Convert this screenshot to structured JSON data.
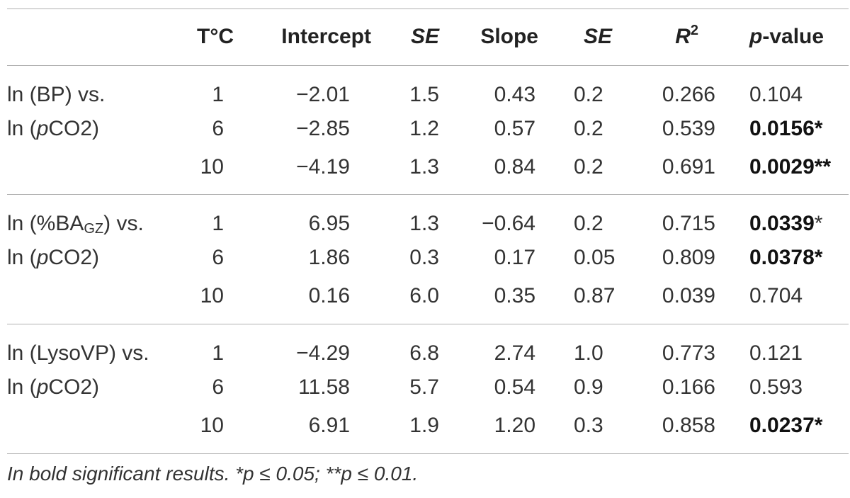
{
  "table": {
    "headers": {
      "temp": "T°C",
      "intercept": "Intercept",
      "se1": "SE",
      "slope": "Slope",
      "se2": "SE",
      "r2_base": "R",
      "r2_sup": "2",
      "pval_italic": "p",
      "pval_rest": "-value"
    },
    "groups": [
      {
        "label_line1": "ln (BP) vs.",
        "label_line2_pre": "ln (",
        "label_line2_italic": "p",
        "label_line2_post": "CO2)",
        "rows": [
          {
            "t": "1",
            "intercept": "−2.01",
            "se1": "1.5",
            "slope": "0.43",
            "se2": "0.2",
            "r2": "0.266",
            "p": "0.104",
            "p_bold": "",
            "p_star": ""
          },
          {
            "t": "6",
            "intercept": "−2.85",
            "se1": "1.2",
            "slope": "0.57",
            "se2": "0.2",
            "r2": "0.539",
            "p": "",
            "p_bold": "0.0156*",
            "p_star": ""
          },
          {
            "t": "10",
            "intercept": "−4.19",
            "se1": "1.3",
            "slope": "0.84",
            "se2": "0.2",
            "r2": "0.691",
            "p": "",
            "p_bold": "0.0029**",
            "p_star": ""
          }
        ]
      },
      {
        "label_line1_pre": "ln (%BA",
        "label_line1_sub": "GZ",
        "label_line1_post": ") vs.",
        "label_line2_pre": "ln (",
        "label_line2_italic": "p",
        "label_line2_post": "CO2)",
        "rows": [
          {
            "t": "1",
            "intercept": "6.95",
            "se1": "1.3",
            "slope": "−0.64",
            "se2": "0.2",
            "r2": "0.715",
            "p": "",
            "p_bold": "0.0339",
            "p_star": "*"
          },
          {
            "t": "6",
            "intercept": "1.86",
            "se1": "0.3",
            "slope": "0.17",
            "se2": "0.05",
            "r2": "0.809",
            "p": "",
            "p_bold": "0.0378*",
            "p_star": ""
          },
          {
            "t": "10",
            "intercept": "0.16",
            "se1": "6.0",
            "slope": "0.35",
            "se2": "0.87",
            "r2": "0.039",
            "p": "0.704",
            "p_bold": "",
            "p_star": ""
          }
        ]
      },
      {
        "label_line1": "ln (LysoVP) vs.",
        "label_line2_pre": "ln (",
        "label_line2_italic": "p",
        "label_line2_post": "CO2)",
        "rows": [
          {
            "t": "1",
            "intercept": "−4.29",
            "se1": "6.8",
            "slope": "2.74",
            "se2": "1.0",
            "r2": "0.773",
            "p": "0.121",
            "p_bold": "",
            "p_star": ""
          },
          {
            "t": "6",
            "intercept": "11.58",
            "se1": "5.7",
            "slope": "0.54",
            "se2": "0.9",
            "r2": "0.166",
            "p": "0.593",
            "p_bold": "",
            "p_star": ""
          },
          {
            "t": "10",
            "intercept": "6.91",
            "se1": "1.9",
            "slope": "1.20",
            "se2": "0.3",
            "r2": "0.858",
            "p": "",
            "p_bold": "0.0237*",
            "p_star": ""
          }
        ]
      }
    ],
    "footnote": "In bold significant results. *p ≤ 0.05; **p ≤ 0.01."
  }
}
